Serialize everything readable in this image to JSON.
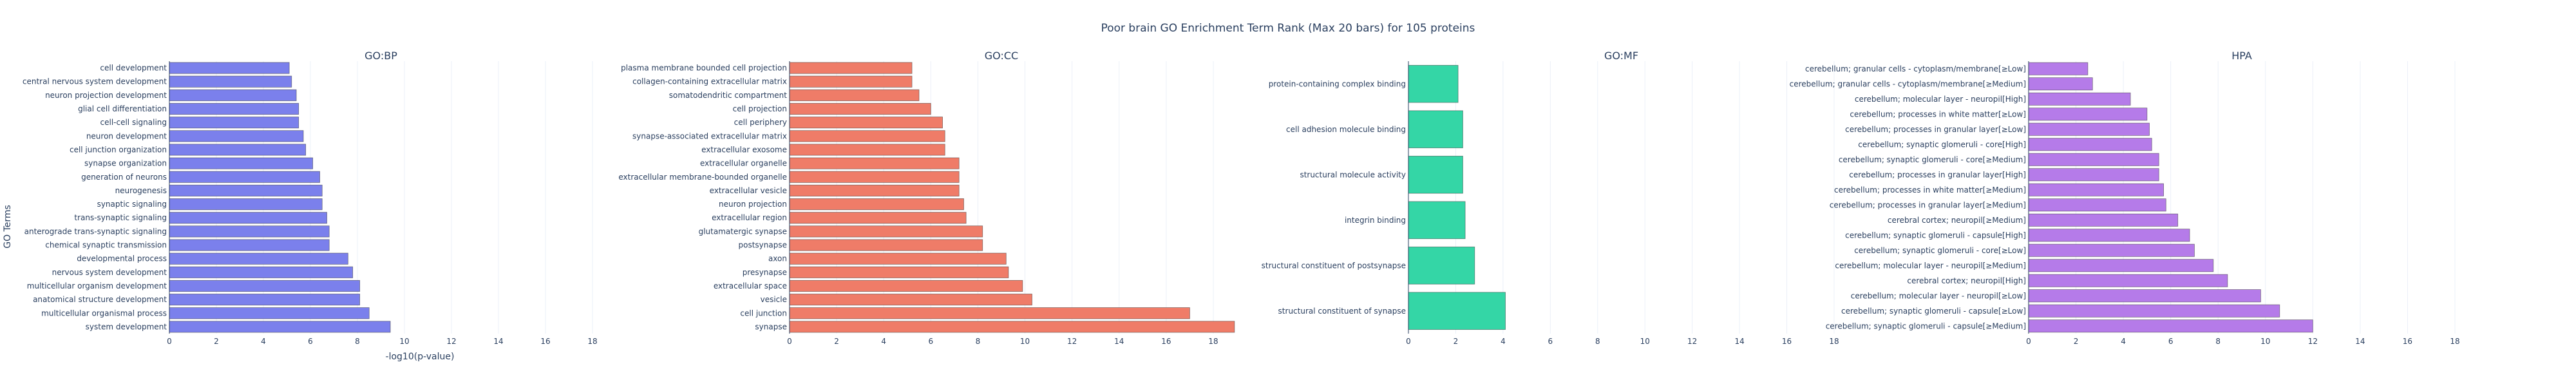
{
  "chart_data": {
    "type": "bar",
    "orientation": "horizontal",
    "title": "Poor brain GO Enrichment Term Rank (Max 20 bars) for 105 proteins",
    "xlabel": "-log10(p-value)",
    "ylabel": "GO Terms",
    "xlim": [
      0,
      18
    ],
    "xticks": [
      0,
      2,
      4,
      6,
      8,
      10,
      12,
      14,
      16,
      18
    ],
    "grid": true,
    "legend": "none",
    "panels": [
      {
        "name": "GO:BP",
        "color": "#7b80ec",
        "categories": [
          "cell development",
          "central nervous system development",
          "neuron projection development",
          "glial cell differentiation",
          "cell-cell signaling",
          "neuron development",
          "cell junction organization",
          "synapse organization",
          "generation of neurons",
          "neurogenesis",
          "synaptic signaling",
          "trans-synaptic signaling",
          "anterograde trans-synaptic signaling",
          "chemical synaptic transmission",
          "developmental process",
          "nervous system development",
          "multicellular organism development",
          "anatomical structure development",
          "multicellular organismal process",
          "system development"
        ],
        "values": [
          5.1,
          5.2,
          5.4,
          5.5,
          5.5,
          5.7,
          5.8,
          6.1,
          6.4,
          6.5,
          6.5,
          6.7,
          6.8,
          6.8,
          7.6,
          7.8,
          8.1,
          8.1,
          8.5,
          9.4
        ]
      },
      {
        "name": "GO:CC",
        "color": "#ef7c68",
        "categories": [
          "plasma membrane bounded cell projection",
          "collagen-containing extracellular matrix",
          "somatodendritic compartment",
          "cell projection",
          "cell periphery",
          "synapse-associated extracellular matrix",
          "extracellular exosome",
          "extracellular organelle",
          "extracellular membrane-bounded organelle",
          "extracellular vesicle",
          "neuron projection",
          "extracellular region",
          "glutamatergic synapse",
          "postsynapse",
          "axon",
          "presynapse",
          "extracellular space",
          "vesicle",
          "cell junction",
          "synapse"
        ],
        "values": [
          5.2,
          5.2,
          5.5,
          6.0,
          6.5,
          6.6,
          6.6,
          7.2,
          7.2,
          7.2,
          7.4,
          7.5,
          8.2,
          8.2,
          9.2,
          9.3,
          9.9,
          10.3,
          17.0,
          18.9
        ]
      },
      {
        "name": "GO:MF",
        "color": "#34d6a6",
        "categories": [
          "protein-containing complex binding",
          "cell adhesion molecule binding",
          "structural molecule activity",
          "integrin binding",
          "structural constituent of postsynapse",
          "structural constituent of synapse"
        ],
        "values": [
          2.1,
          2.3,
          2.3,
          2.4,
          2.8,
          4.1
        ]
      },
      {
        "name": "HPA",
        "color": "#b57be9",
        "categories": [
          "cerebellum; granular cells - cytoplasm/membrane[≥Low]",
          "cerebellum; granular cells - cytoplasm/membrane[≥Medium]",
          "cerebellum; molecular layer - neuropil[High]",
          "cerebellum; processes in white matter[≥Low]",
          "cerebellum; processes in granular layer[≥Low]",
          "cerebellum; synaptic glomeruli - core[High]",
          "cerebellum; synaptic glomeruli - core[≥Medium]",
          "cerebellum; processes in granular layer[High]",
          "cerebellum; processes in white matter[≥Medium]",
          "cerebellum; processes in granular layer[≥Medium]",
          "cerebral cortex; neuropil[≥Medium]",
          "cerebellum; synaptic glomeruli - capsule[High]",
          "cerebellum; synaptic glomeruli - core[≥Low]",
          "cerebellum; molecular layer - neuropil[≥Medium]",
          "cerebral cortex; neuropil[High]",
          "cerebellum; molecular layer - neuropil[≥Low]",
          "cerebellum; synaptic glomeruli - capsule[≥Low]",
          "cerebellum; synaptic glomeruli - capsule[≥Medium]"
        ],
        "values": [
          2.5,
          2.7,
          4.3,
          5.0,
          5.1,
          5.2,
          5.5,
          5.5,
          5.7,
          5.8,
          6.3,
          6.8,
          7.0,
          7.8,
          8.4,
          9.8,
          10.6,
          12.0
        ]
      }
    ]
  }
}
